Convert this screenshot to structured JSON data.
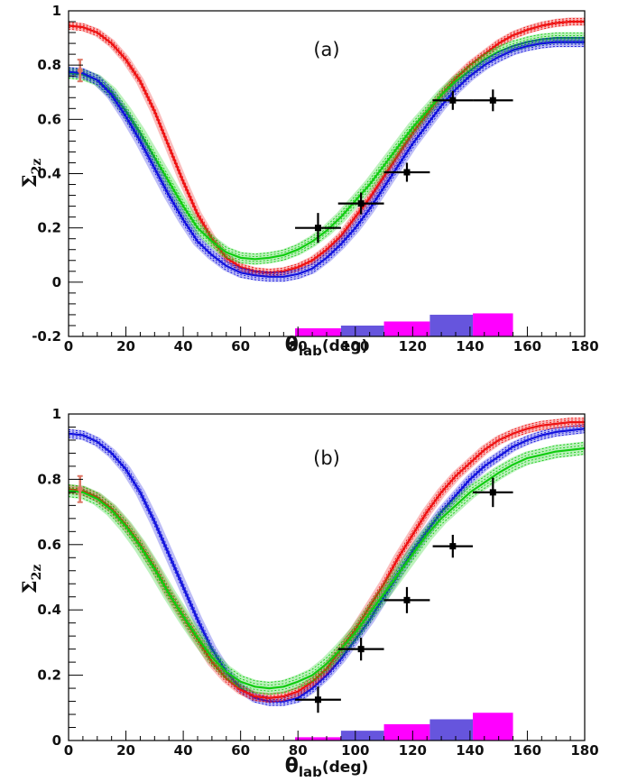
{
  "chart_data": [
    {
      "type": "line",
      "panel_label": "(a)",
      "xlabel_main": "θ",
      "xlabel_sub": "lab",
      "xlabel_unit": "(deg)",
      "ylabel_main": "Σ",
      "ylabel_sub": "2z",
      "xlim": [
        0,
        180
      ],
      "ylim": [
        -0.2,
        1.0
      ],
      "x_ticks": [
        "0",
        "20",
        "40",
        "60",
        "80",
        "100",
        "120",
        "140",
        "160",
        "180"
      ],
      "y_ticks": [
        "-0.2",
        "0",
        "0.2",
        "0.4",
        "0.6",
        "0.8",
        "1"
      ],
      "y_tick_values": [
        -0.2,
        0,
        0.2,
        0.4,
        0.6,
        0.8,
        1.0
      ],
      "legend": "none",
      "grid": false,
      "series": [
        {
          "color": "#ee1111",
          "band": 0.012,
          "x": [
            0,
            5,
            10,
            15,
            20,
            25,
            30,
            35,
            40,
            45,
            50,
            55,
            60,
            65,
            70,
            75,
            80,
            85,
            90,
            95,
            100,
            105,
            110,
            115,
            120,
            125,
            130,
            135,
            140,
            145,
            150,
            155,
            160,
            165,
            170,
            175,
            180
          ],
          "y": [
            0.945,
            0.94,
            0.92,
            0.88,
            0.82,
            0.74,
            0.63,
            0.5,
            0.37,
            0.25,
            0.16,
            0.09,
            0.055,
            0.04,
            0.035,
            0.04,
            0.055,
            0.08,
            0.12,
            0.17,
            0.24,
            0.31,
            0.39,
            0.47,
            0.55,
            0.62,
            0.69,
            0.75,
            0.8,
            0.84,
            0.88,
            0.91,
            0.93,
            0.945,
            0.955,
            0.96,
            0.96
          ]
        },
        {
          "color": "#11cc11",
          "band": 0.018,
          "x": [
            0,
            5,
            10,
            15,
            20,
            25,
            30,
            35,
            40,
            45,
            50,
            55,
            60,
            65,
            70,
            75,
            80,
            85,
            90,
            95,
            100,
            105,
            110,
            115,
            120,
            125,
            130,
            135,
            140,
            145,
            150,
            155,
            160,
            165,
            170,
            175,
            180
          ],
          "y": [
            0.77,
            0.765,
            0.745,
            0.7,
            0.63,
            0.55,
            0.46,
            0.37,
            0.28,
            0.2,
            0.15,
            0.11,
            0.09,
            0.085,
            0.09,
            0.1,
            0.12,
            0.15,
            0.19,
            0.24,
            0.3,
            0.36,
            0.43,
            0.5,
            0.57,
            0.63,
            0.69,
            0.74,
            0.78,
            0.82,
            0.85,
            0.87,
            0.885,
            0.895,
            0.9,
            0.9,
            0.9
          ]
        },
        {
          "color": "#1111dd",
          "band": 0.016,
          "x": [
            0,
            5,
            10,
            15,
            20,
            25,
            30,
            35,
            40,
            45,
            50,
            55,
            60,
            65,
            70,
            75,
            80,
            85,
            90,
            95,
            100,
            105,
            110,
            115,
            120,
            125,
            130,
            135,
            140,
            145,
            150,
            155,
            160,
            165,
            170,
            175,
            180
          ],
          "y": [
            0.775,
            0.77,
            0.745,
            0.69,
            0.61,
            0.52,
            0.42,
            0.32,
            0.23,
            0.15,
            0.1,
            0.06,
            0.035,
            0.025,
            0.02,
            0.02,
            0.03,
            0.05,
            0.09,
            0.14,
            0.2,
            0.27,
            0.35,
            0.43,
            0.51,
            0.58,
            0.65,
            0.71,
            0.76,
            0.8,
            0.83,
            0.855,
            0.87,
            0.88,
            0.885,
            0.885,
            0.885
          ]
        }
      ],
      "data_points": [
        {
          "x": 87,
          "xerr": 8,
          "y": 0.2,
          "yerr": 0.055
        },
        {
          "x": 102,
          "xerr": 8,
          "y": 0.29,
          "yerr": 0.04
        },
        {
          "x": 118,
          "xerr": 8,
          "y": 0.405,
          "yerr": 0.035
        },
        {
          "x": 134,
          "xerr": 7,
          "y": 0.67,
          "yerr": 0.035
        },
        {
          "x": 148,
          "xerr": 7,
          "y": 0.67,
          "yerr": 0.04
        }
      ],
      "ref_point": {
        "x": 4,
        "xerr": 0.5,
        "y": 0.78,
        "yerr": 0.04,
        "color": "#dd7766"
      },
      "histogram": [
        {
          "x0": 79,
          "x1": 95,
          "value": -0.17,
          "color": "#ff00ff"
        },
        {
          "x0": 95,
          "x1": 110,
          "value": -0.16,
          "color": "#6655dd"
        },
        {
          "x0": 110,
          "x1": 126,
          "value": -0.145,
          "color": "#ff00ff"
        },
        {
          "x0": 126,
          "x1": 141,
          "value": -0.12,
          "color": "#6655dd"
        },
        {
          "x0": 141,
          "x1": 155,
          "value": -0.115,
          "color": "#ff00ff"
        }
      ]
    },
    {
      "type": "line",
      "panel_label": "(b)",
      "xlabel_main": "θ",
      "xlabel_sub": "lab",
      "xlabel_unit": "(deg)",
      "ylabel_main": "Σ",
      "ylabel_sub": "2z",
      "xlim": [
        0,
        180
      ],
      "ylim": [
        0,
        1.0
      ],
      "x_ticks": [
        "0",
        "20",
        "40",
        "60",
        "80",
        "100",
        "120",
        "140",
        "160",
        "180"
      ],
      "y_ticks": [
        "0",
        "0.2",
        "0.4",
        "0.6",
        "0.8",
        "1"
      ],
      "y_tick_values": [
        0,
        0.2,
        0.4,
        0.6,
        0.8,
        1.0
      ],
      "legend": "none",
      "grid": false,
      "series": [
        {
          "color": "#1111dd",
          "band": 0.012,
          "x": [
            0,
            5,
            10,
            15,
            20,
            25,
            30,
            35,
            40,
            45,
            50,
            55,
            60,
            65,
            70,
            75,
            80,
            85,
            90,
            95,
            100,
            105,
            110,
            115,
            120,
            125,
            130,
            135,
            140,
            145,
            150,
            155,
            160,
            165,
            170,
            175,
            180
          ],
          "y": [
            0.94,
            0.935,
            0.915,
            0.88,
            0.83,
            0.76,
            0.67,
            0.57,
            0.47,
            0.37,
            0.28,
            0.21,
            0.16,
            0.13,
            0.12,
            0.12,
            0.13,
            0.16,
            0.2,
            0.25,
            0.31,
            0.37,
            0.44,
            0.51,
            0.58,
            0.64,
            0.7,
            0.75,
            0.8,
            0.84,
            0.87,
            0.9,
            0.92,
            0.935,
            0.945,
            0.95,
            0.955
          ]
        },
        {
          "color": "#ee1111",
          "band": 0.012,
          "x": [
            0,
            5,
            10,
            15,
            20,
            25,
            30,
            35,
            40,
            45,
            50,
            55,
            60,
            65,
            70,
            75,
            80,
            85,
            90,
            95,
            100,
            105,
            110,
            115,
            120,
            125,
            130,
            135,
            140,
            145,
            150,
            155,
            160,
            165,
            170,
            175,
            180
          ],
          "y": [
            0.77,
            0.765,
            0.745,
            0.71,
            0.66,
            0.6,
            0.53,
            0.45,
            0.38,
            0.31,
            0.24,
            0.19,
            0.155,
            0.135,
            0.13,
            0.135,
            0.15,
            0.18,
            0.22,
            0.28,
            0.34,
            0.41,
            0.48,
            0.56,
            0.63,
            0.7,
            0.76,
            0.81,
            0.85,
            0.89,
            0.92,
            0.94,
            0.955,
            0.965,
            0.97,
            0.975,
            0.975
          ]
        },
        {
          "color": "#11cc11",
          "band": 0.018,
          "x": [
            0,
            5,
            10,
            15,
            20,
            25,
            30,
            35,
            40,
            45,
            50,
            55,
            60,
            65,
            70,
            75,
            80,
            85,
            90,
            95,
            100,
            105,
            110,
            115,
            120,
            125,
            130,
            135,
            140,
            145,
            150,
            155,
            160,
            165,
            170,
            175,
            180
          ],
          "y": [
            0.765,
            0.76,
            0.74,
            0.705,
            0.655,
            0.595,
            0.525,
            0.45,
            0.38,
            0.315,
            0.255,
            0.21,
            0.18,
            0.165,
            0.16,
            0.165,
            0.18,
            0.2,
            0.235,
            0.28,
            0.33,
            0.39,
            0.45,
            0.51,
            0.57,
            0.63,
            0.68,
            0.72,
            0.76,
            0.79,
            0.82,
            0.845,
            0.865,
            0.875,
            0.885,
            0.89,
            0.895
          ]
        }
      ],
      "data_points": [
        {
          "x": 87,
          "xerr": 8,
          "y": 0.125,
          "yerr": 0.04
        },
        {
          "x": 102,
          "xerr": 8,
          "y": 0.28,
          "yerr": 0.035
        },
        {
          "x": 118,
          "xerr": 8,
          "y": 0.43,
          "yerr": 0.04
        },
        {
          "x": 134,
          "xerr": 7,
          "y": 0.595,
          "yerr": 0.035
        },
        {
          "x": 148,
          "xerr": 7,
          "y": 0.76,
          "yerr": 0.045
        }
      ],
      "ref_point": {
        "x": 4,
        "xerr": 0.5,
        "y": 0.77,
        "yerr": 0.04,
        "color": "#dd7766"
      },
      "histogram": [
        {
          "x0": 79,
          "x1": 95,
          "value": 0.01,
          "color": "#ff00ff"
        },
        {
          "x0": 95,
          "x1": 110,
          "value": 0.03,
          "color": "#6655dd"
        },
        {
          "x0": 110,
          "x1": 126,
          "value": 0.05,
          "color": "#ff00ff"
        },
        {
          "x0": 126,
          "x1": 141,
          "value": 0.065,
          "color": "#6655dd"
        },
        {
          "x0": 141,
          "x1": 155,
          "value": 0.085,
          "color": "#ff00ff"
        }
      ]
    }
  ]
}
